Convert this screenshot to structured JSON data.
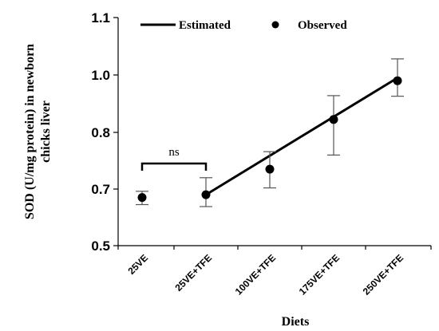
{
  "chart_data": {
    "type": "scatter",
    "xlabel": "Diets",
    "ylabel": [
      "SOD (U/mg protein) in newborn",
      "chicks liver"
    ],
    "categories": [
      "25VE",
      "25VE+TFE",
      "100VE+TFE",
      "175VE+TFE",
      "250VE+TFE"
    ],
    "y_ticks": [
      "0.5",
      "0.7",
      "0.8",
      "1.0",
      "1.1"
    ],
    "ylim": [
      0.5,
      1.1
    ],
    "series": [
      {
        "name": "Observed",
        "marker": "circle",
        "values": [
          0.67,
          0.68,
          0.735,
          0.845,
          0.98
        ],
        "error_low": [
          0.645,
          0.638,
          0.702,
          0.76,
          0.926
        ],
        "error_high": [
          0.692,
          0.72,
          0.766,
          0.928,
          1.028
        ]
      },
      {
        "name": "Estimated",
        "style": "line",
        "x_from": "25VE+TFE",
        "x_to": "250VE+TFE",
        "values": [
          0.68,
          0.99
        ]
      }
    ],
    "annotations": [
      {
        "text": "ns",
        "between": [
          "25VE",
          "25VE+TFE"
        ],
        "type": "bracket"
      }
    ],
    "legend": {
      "position": "top",
      "entries": [
        "Estimated",
        "Observed"
      ]
    },
    "grid": false,
    "colors": {
      "marks": "#000000",
      "errorbars": "#555555"
    }
  }
}
